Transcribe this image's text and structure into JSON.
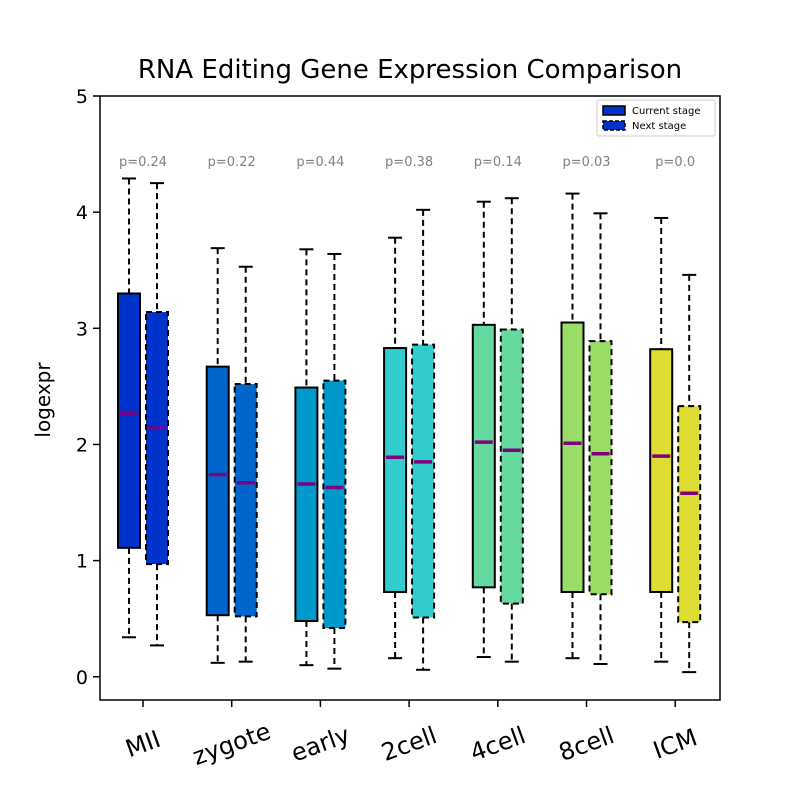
{
  "chart_data": {
    "type": "box",
    "title": "RNA Editing Gene Expression Comparison",
    "xlabel": "",
    "ylabel": "logexpr",
    "ylim": [
      -0.2,
      5.0
    ],
    "yticks": [
      0,
      1,
      2,
      3,
      4,
      5
    ],
    "categories": [
      "MII",
      "zygote",
      "early",
      "2cell",
      "4cell",
      "8cell",
      "ICM"
    ],
    "category_colors": [
      "#0033cc",
      "#0066cc",
      "#0099cc",
      "#33cccc",
      "#66d9a0",
      "#99dd66",
      "#dddd33"
    ],
    "median_color": "#800080",
    "legend": {
      "placement": "upper-right",
      "entries": [
        {
          "label": "Current stage",
          "style": "solid"
        },
        {
          "label": "Next stage",
          "style": "dashed"
        }
      ]
    },
    "p_values": [
      "p=0.24",
      "p=0.22",
      "p=0.44",
      "p=0.38",
      "p=0.14",
      "p=0.03",
      "p=0.0"
    ],
    "series": [
      {
        "name": "Current stage",
        "boxes": [
          {
            "whisker_low": 0.34,
            "q1": 1.11,
            "median": 2.27,
            "q3": 3.3,
            "whisker_high": 4.29
          },
          {
            "whisker_low": 0.12,
            "q1": 0.53,
            "median": 1.74,
            "q3": 2.67,
            "whisker_high": 3.69
          },
          {
            "whisker_low": 0.1,
            "q1": 0.48,
            "median": 1.66,
            "q3": 2.49,
            "whisker_high": 3.68
          },
          {
            "whisker_low": 0.16,
            "q1": 0.73,
            "median": 1.89,
            "q3": 2.83,
            "whisker_high": 3.78
          },
          {
            "whisker_low": 0.17,
            "q1": 0.77,
            "median": 2.02,
            "q3": 3.03,
            "whisker_high": 4.09
          },
          {
            "whisker_low": 0.16,
            "q1": 0.73,
            "median": 2.01,
            "q3": 3.05,
            "whisker_high": 4.16
          },
          {
            "whisker_low": 0.13,
            "q1": 0.73,
            "median": 1.9,
            "q3": 2.82,
            "whisker_high": 3.95
          }
        ]
      },
      {
        "name": "Next stage",
        "boxes": [
          {
            "whisker_low": 0.27,
            "q1": 0.97,
            "median": 2.14,
            "q3": 3.14,
            "whisker_high": 4.25
          },
          {
            "whisker_low": 0.13,
            "q1": 0.52,
            "median": 1.67,
            "q3": 2.52,
            "whisker_high": 3.53
          },
          {
            "whisker_low": 0.07,
            "q1": 0.42,
            "median": 1.63,
            "q3": 2.55,
            "whisker_high": 3.64
          },
          {
            "whisker_low": 0.06,
            "q1": 0.51,
            "median": 1.85,
            "q3": 2.86,
            "whisker_high": 4.02
          },
          {
            "whisker_low": 0.13,
            "q1": 0.63,
            "median": 1.95,
            "q3": 2.99,
            "whisker_high": 4.12
          },
          {
            "whisker_low": 0.11,
            "q1": 0.71,
            "median": 1.92,
            "q3": 2.89,
            "whisker_high": 3.99
          },
          {
            "whisker_low": 0.04,
            "q1": 0.47,
            "median": 1.58,
            "q3": 2.33,
            "whisker_high": 3.46
          }
        ]
      }
    ]
  }
}
